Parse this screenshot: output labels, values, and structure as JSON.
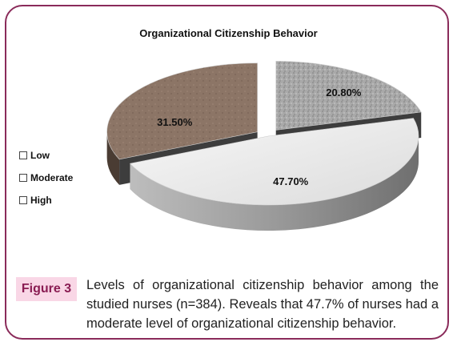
{
  "chart_data": {
    "type": "pie",
    "title": "Organizational Citizenship Behavior",
    "legend_position": "left",
    "slices": [
      {
        "name": "Low",
        "value": 20.8,
        "label": "20.80%",
        "color": "#a9a9a9"
      },
      {
        "name": "Moderate",
        "value": 47.7,
        "label": "47.70%",
        "color": "#ececec"
      },
      {
        "name": "High",
        "value": 31.5,
        "label": "31.50%",
        "color": "#8c7566"
      }
    ]
  },
  "figure": {
    "badge": "Figure 3",
    "caption": "Levels of organizational citizenship behavior among the studied nurses (n=384). Reveals that 47.7% of nurses had a moderate level of organizational citizenship behavior."
  },
  "colors": {
    "frame": "#8a2b5a",
    "badge_bg": "#f9d7e6",
    "badge_text": "#8a1d53"
  }
}
